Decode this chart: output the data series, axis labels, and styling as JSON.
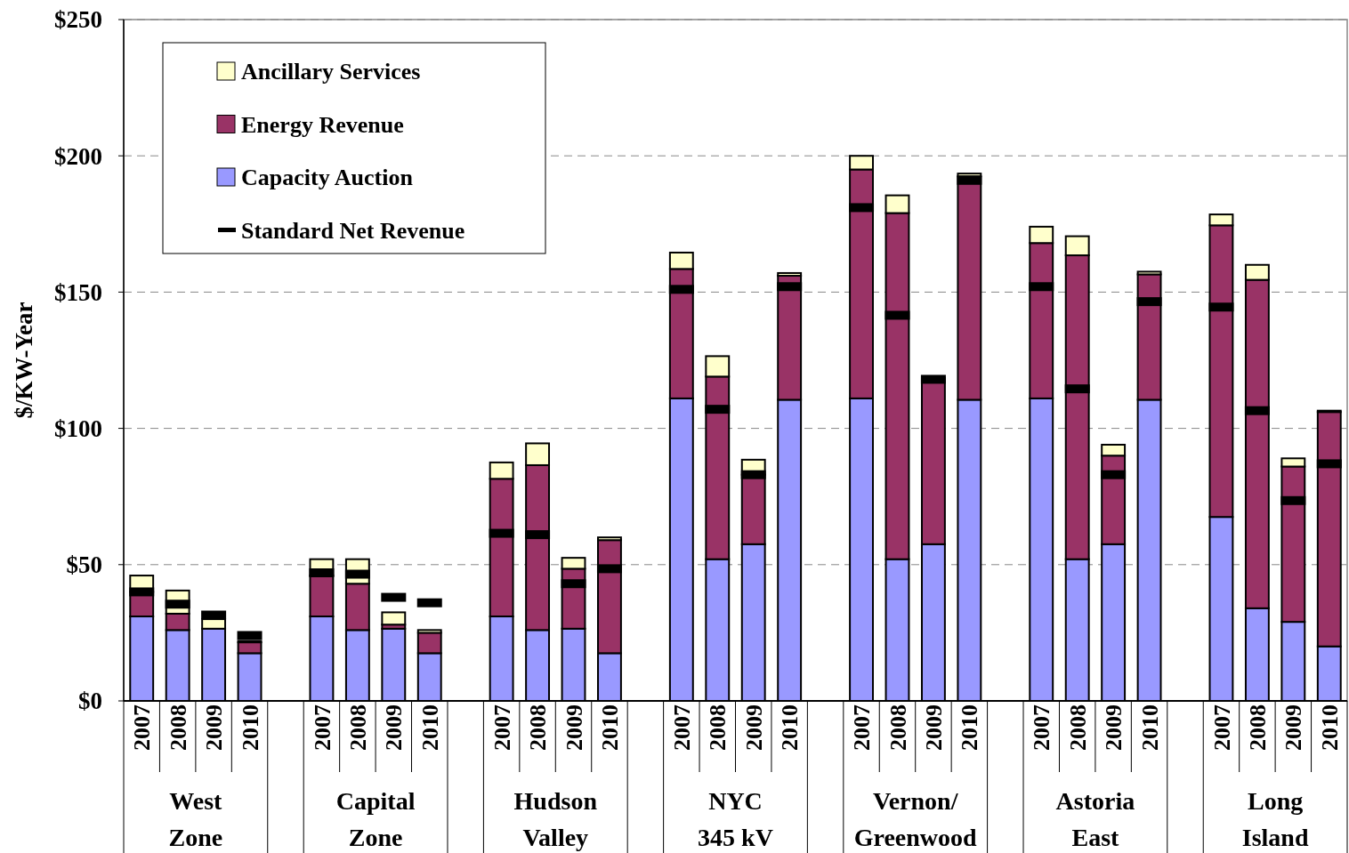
{
  "chart_data": {
    "type": "bar",
    "stacked": true,
    "ylabel": "$/KW-Year",
    "categories": [
      "2007",
      "2008",
      "2009",
      "2010",
      null,
      "2007",
      "2008",
      "2009",
      "2010",
      null,
      "2007",
      "2008",
      "2009",
      "2010",
      null,
      "2007",
      "2008",
      "2009",
      "2010",
      null,
      "2007",
      "2008",
      "2009",
      "2010",
      null,
      "2007",
      "2008",
      "2009",
      "2010",
      null,
      "2007",
      "2008",
      "2009",
      "2010"
    ],
    "annotations": [
      "West\nZone",
      "Capital\nZone",
      "Hudson\nValley",
      "NYC\n345 kV",
      "Vernon/\nGreenwood",
      "Astoria\nEast",
      "Long\nIsland"
    ],
    "series": [
      {
        "name": "Capacity Auction",
        "color": "#9999ff",
        "values": [
          31,
          26,
          26.5,
          17.5,
          null,
          31,
          26,
          26.5,
          17.5,
          null,
          31,
          26,
          26.5,
          17.5,
          null,
          111,
          52,
          57.5,
          110.5,
          null,
          111,
          52,
          57.5,
          110.5,
          null,
          111,
          52,
          57.5,
          110.5,
          null,
          67.5,
          34,
          29,
          20
        ]
      },
      {
        "name": "Energy Revenue",
        "color": "#993366",
        "values": [
          9,
          6,
          0,
          4,
          null,
          15,
          17,
          1.5,
          7.5,
          null,
          50.5,
          60.5,
          22,
          41.5,
          null,
          47.5,
          67,
          25.5,
          45.5,
          null,
          84,
          127,
          61,
          82,
          null,
          57,
          111.5,
          32.5,
          46,
          null,
          107,
          120.5,
          57,
          86
        ]
      },
      {
        "name": "Ancillary Services",
        "color": "#ffffcc",
        "values": [
          6,
          8.5,
          3.5,
          0.5,
          null,
          6,
          9,
          4.5,
          1,
          null,
          6,
          8,
          4,
          1,
          null,
          6,
          7.5,
          5.5,
          1,
          null,
          5,
          6.5,
          null,
          1,
          null,
          6,
          7,
          4,
          1,
          null,
          4,
          5.5,
          3,
          0.5
        ]
      },
      {
        "name": "Standard Net Revenue",
        "type": "scatter",
        "color": "#000000",
        "values": [
          40,
          35.5,
          31.5,
          24,
          null,
          47,
          46.5,
          38,
          36,
          null,
          61.5,
          61,
          43,
          48.5,
          null,
          151,
          107,
          83,
          152,
          null,
          181,
          141.5,
          118,
          191,
          null,
          152,
          114.5,
          83,
          146.5,
          null,
          144.5,
          106.5,
          73.5,
          87
        ]
      }
    ],
    "ylim": [
      0,
      250
    ],
    "yticks": [
      {
        "value": 0,
        "label": "$0"
      },
      {
        "value": 50,
        "label": "$50"
      },
      {
        "value": 100,
        "label": "$100"
      },
      {
        "value": 150,
        "label": "$150"
      },
      {
        "value": 200,
        "label": "$200"
      },
      {
        "value": 250,
        "label": "$250"
      }
    ],
    "grid": "y",
    "legend": "top left"
  }
}
